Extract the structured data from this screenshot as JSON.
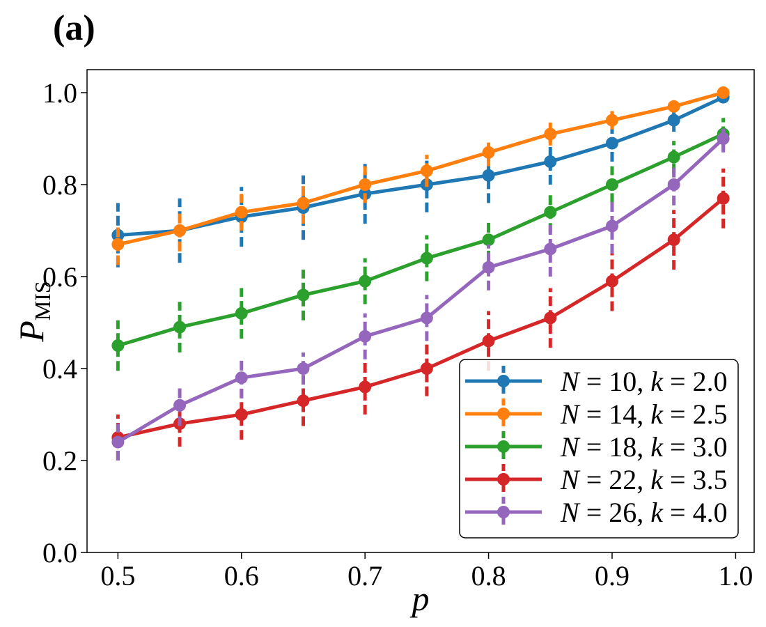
{
  "panel_label": "(a)",
  "colors": {
    "blue": "#1f77b4",
    "orange": "#ff7f0e",
    "green": "#2ca02c",
    "red": "#d62728",
    "purple": "#9467bd"
  },
  "chart_data": {
    "type": "line",
    "title": "",
    "xlabel": "p",
    "ylabel_main": "P",
    "ylabel_sub": "MIS",
    "xlim": [
      0.475,
      1.015
    ],
    "ylim": [
      0.0,
      1.05
    ],
    "xticks": [
      0.5,
      0.6,
      0.7,
      0.8,
      0.9,
      1.0
    ],
    "xtick_labels": [
      "0.5",
      "0.6",
      "0.7",
      "0.8",
      "0.9",
      "1.0"
    ],
    "yticks": [
      0.0,
      0.2,
      0.4,
      0.6,
      0.8,
      1.0
    ],
    "ytick_labels": [
      "0.0",
      "0.2",
      "0.4",
      "0.6",
      "0.8",
      "1.0"
    ],
    "grid": false,
    "legend_position": "bottom-right",
    "x": [
      0.5,
      0.55,
      0.6,
      0.65,
      0.7,
      0.75,
      0.8,
      0.85,
      0.9,
      0.95,
      0.99
    ],
    "series": [
      {
        "name": "N = 10, k = 2.0",
        "N": "10",
        "k": "2.0",
        "color": "#1f77b4",
        "values": [
          0.69,
          0.7,
          0.73,
          0.75,
          0.78,
          0.8,
          0.82,
          0.85,
          0.89,
          0.94,
          0.99
        ],
        "errors": [
          0.07,
          0.07,
          0.065,
          0.07,
          0.065,
          0.06,
          0.06,
          0.05,
          0.04,
          0.025,
          0.01
        ]
      },
      {
        "name": "N = 14, k = 2.5",
        "N": "14",
        "k": "2.5",
        "color": "#ff7f0e",
        "values": [
          0.67,
          0.7,
          0.74,
          0.76,
          0.8,
          0.83,
          0.87,
          0.91,
          0.94,
          0.97,
          1.0
        ],
        "errors": [
          0.045,
          0.045,
          0.04,
          0.045,
          0.04,
          0.035,
          0.03,
          0.025,
          0.02,
          0.01,
          0.005
        ]
      },
      {
        "name": "N = 18, k = 3.0",
        "N": "18",
        "k": "3.0",
        "color": "#2ca02c",
        "values": [
          0.45,
          0.49,
          0.52,
          0.56,
          0.59,
          0.64,
          0.68,
          0.74,
          0.8,
          0.86,
          0.91
        ],
        "errors": [
          0.055,
          0.055,
          0.055,
          0.055,
          0.05,
          0.05,
          0.045,
          0.045,
          0.04,
          0.035,
          0.035
        ]
      },
      {
        "name": "N = 22, k = 3.5",
        "N": "22",
        "k": "3.5",
        "color": "#d62728",
        "values": [
          0.25,
          0.28,
          0.3,
          0.33,
          0.36,
          0.4,
          0.46,
          0.51,
          0.59,
          0.68,
          0.77
        ],
        "errors": [
          0.05,
          0.05,
          0.055,
          0.055,
          0.06,
          0.06,
          0.065,
          0.065,
          0.065,
          0.065,
          0.065
        ]
      },
      {
        "name": "N = 26, k = 4.0",
        "N": "26",
        "k": "4.0",
        "color": "#9467bd",
        "values": [
          0.24,
          0.32,
          0.38,
          0.4,
          0.47,
          0.51,
          0.62,
          0.66,
          0.71,
          0.8,
          0.9
        ],
        "errors": [
          0.04,
          0.045,
          0.045,
          0.035,
          0.05,
          0.05,
          0.05,
          0.06,
          0.06,
          0.045,
          0.03
        ]
      }
    ]
  }
}
